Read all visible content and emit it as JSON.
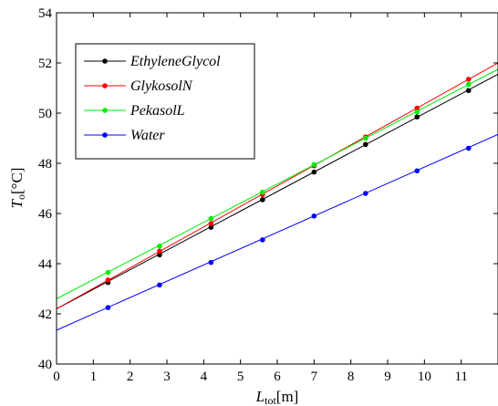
{
  "chart_data": {
    "type": "line",
    "xlabel_main": "L",
    "xlabel_sub": "tot",
    "xlabel_unit": "[m]",
    "ylabel_main": "T",
    "ylabel_sub": "o",
    "ylabel_unit": "[°C]",
    "xlim": [
      0,
      12
    ],
    "ylim": [
      40,
      54
    ],
    "xticks": [
      0,
      1,
      2,
      3,
      4,
      5,
      6,
      7,
      8,
      9,
      10,
      11
    ],
    "yticks": [
      40,
      42,
      44,
      46,
      48,
      50,
      52,
      54
    ],
    "grid": false,
    "legend_position": "top-left",
    "series": [
      {
        "name": "EthyleneGlycol",
        "color": "#000000",
        "line": {
          "x": [
            0,
            12
          ],
          "y": [
            42.2,
            51.55
          ]
        },
        "markers": {
          "x": [
            1.4,
            2.8,
            4.2,
            5.6,
            7.0,
            8.4,
            9.8,
            11.2
          ],
          "y": [
            43.25,
            44.35,
            45.45,
            46.55,
            47.65,
            48.75,
            49.85,
            50.9
          ]
        }
      },
      {
        "name": "GlykosolN",
        "color": "#ff0000",
        "line": {
          "x": [
            0,
            12
          ],
          "y": [
            42.2,
            52.0
          ]
        },
        "markers": {
          "x": [
            1.4,
            2.8,
            4.2,
            5.6,
            7.0,
            8.4,
            9.8,
            11.2
          ],
          "y": [
            43.35,
            44.5,
            45.6,
            46.75,
            47.9,
            49.05,
            50.2,
            51.35
          ]
        }
      },
      {
        "name": "PekasolL",
        "color": "#00ee00",
        "line": {
          "x": [
            0,
            12
          ],
          "y": [
            42.6,
            51.75
          ]
        },
        "markers": {
          "x": [
            1.4,
            2.8,
            4.2,
            5.6,
            7.0,
            8.4,
            9.8,
            11.2
          ],
          "y": [
            43.65,
            44.7,
            45.8,
            46.85,
            47.95,
            49.0,
            50.05,
            51.15
          ]
        }
      },
      {
        "name": "Water",
        "color": "#0000ff",
        "line": {
          "x": [
            0,
            12
          ],
          "y": [
            41.35,
            49.15
          ]
        },
        "markers": {
          "x": [
            1.4,
            2.8,
            4.2,
            5.6,
            7.0,
            8.4,
            9.8,
            11.2
          ],
          "y": [
            42.25,
            43.15,
            44.05,
            44.95,
            45.9,
            46.8,
            47.7,
            48.6
          ]
        }
      }
    ]
  }
}
